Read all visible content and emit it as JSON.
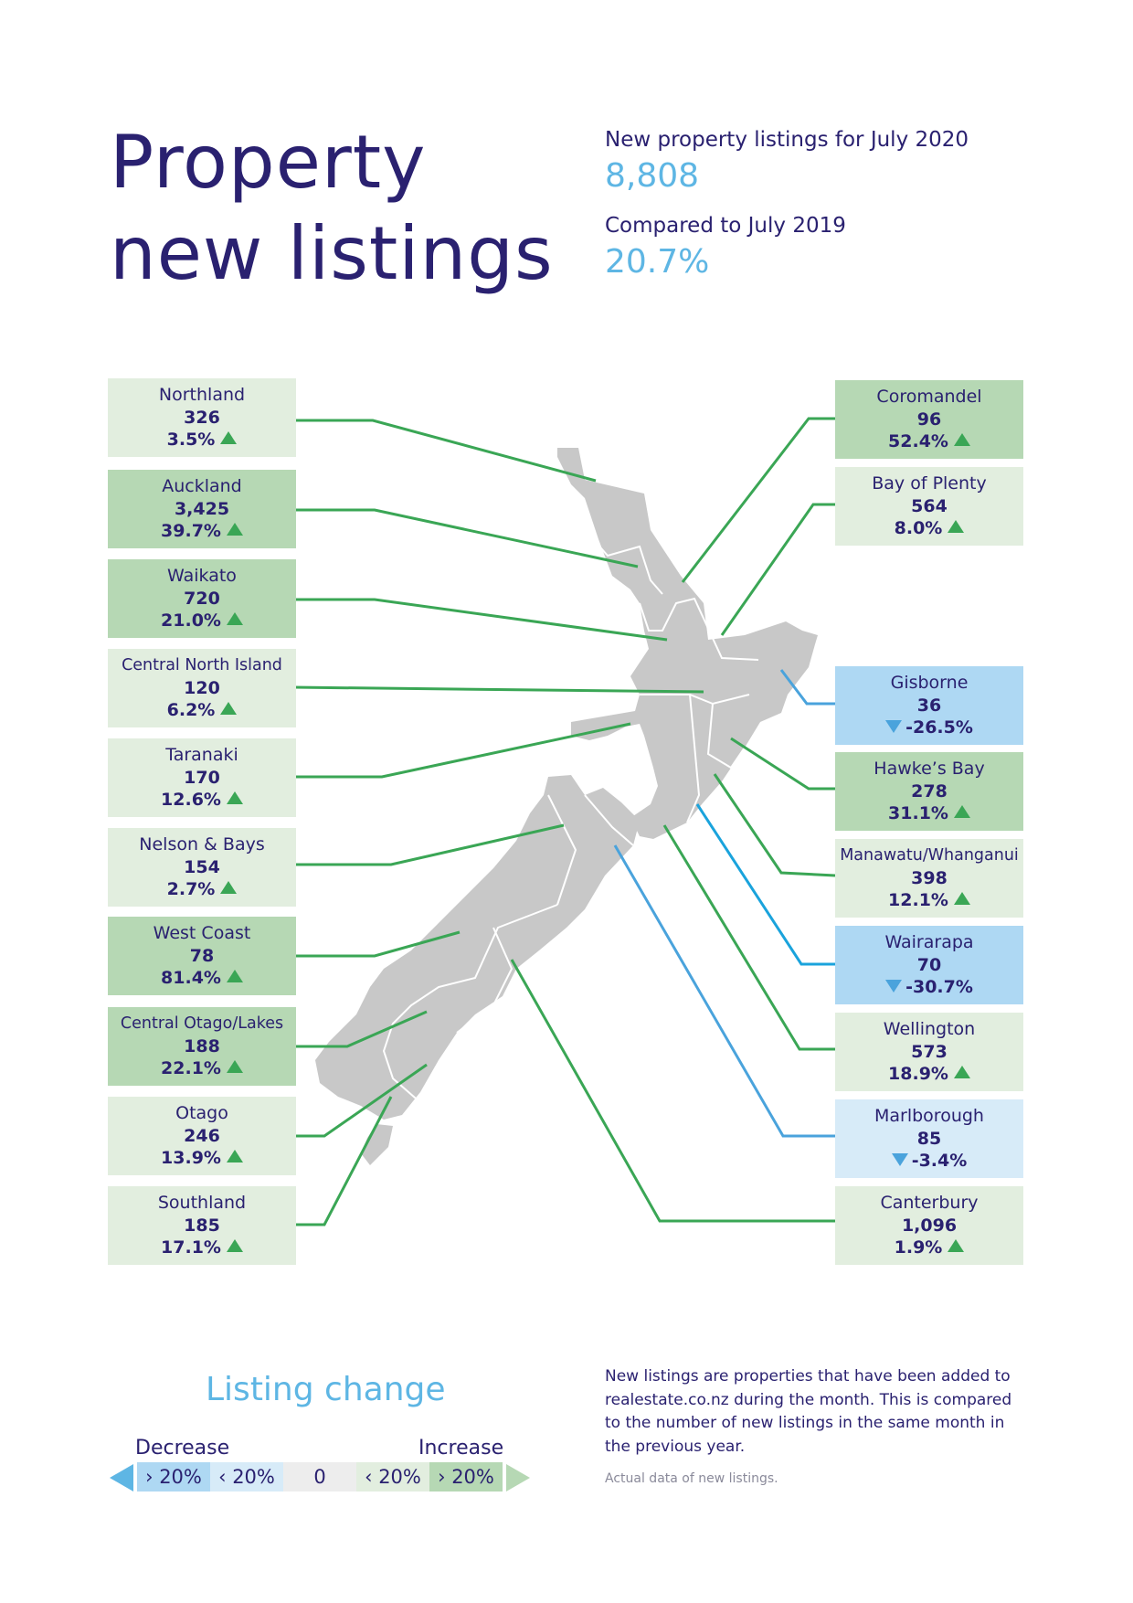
{
  "title": {
    "line1": "Property",
    "line2": "new listings"
  },
  "summary": {
    "listings_label": "New property listings for July 2020",
    "listings_value": "8,808",
    "compare_label": "Compared to July 2019",
    "compare_value": "20.7%"
  },
  "colors": {
    "strong_increase": "#b6d8b4",
    "mild_increase": "#e2eedf",
    "strong_decrease": "#aed8f3",
    "mild_decrease": "#d7ebf8",
    "neutral": "#ededed",
    "line_increase": "#3aa655",
    "line_decrease": "#4aa3dc",
    "map_land": "#c8c8c8",
    "title": "#2a2170",
    "accent": "#5eb6e4"
  },
  "regions": [
    {
      "id": "northland",
      "name": "Northland",
      "listings": "326",
      "change": "3.5%",
      "direction": "up",
      "band": "mild_increase"
    },
    {
      "id": "auckland",
      "name": "Auckland",
      "listings": "3,425",
      "change": "39.7%",
      "direction": "up",
      "band": "strong_increase"
    },
    {
      "id": "waikato",
      "name": "Waikato",
      "listings": "720",
      "change": "21.0%",
      "direction": "up",
      "band": "strong_increase"
    },
    {
      "id": "central-north-island",
      "name": "Central North Island",
      "listings": "120",
      "change": "6.2%",
      "direction": "up",
      "band": "mild_increase"
    },
    {
      "id": "taranaki",
      "name": "Taranaki",
      "listings": "170",
      "change": "12.6%",
      "direction": "up",
      "band": "mild_increase"
    },
    {
      "id": "nelson-bays",
      "name": "Nelson & Bays",
      "listings": "154",
      "change": "2.7%",
      "direction": "up",
      "band": "mild_increase"
    },
    {
      "id": "west-coast",
      "name": "West Coast",
      "listings": "78",
      "change": "81.4%",
      "direction": "up",
      "band": "strong_increase"
    },
    {
      "id": "central-otago-lakes",
      "name": "Central Otago/Lakes",
      "listings": "188",
      "change": "22.1%",
      "direction": "up",
      "band": "strong_increase"
    },
    {
      "id": "otago",
      "name": "Otago",
      "listings": "246",
      "change": "13.9%",
      "direction": "up",
      "band": "mild_increase"
    },
    {
      "id": "southland",
      "name": "Southland",
      "listings": "185",
      "change": "17.1%",
      "direction": "up",
      "band": "mild_increase"
    },
    {
      "id": "coromandel",
      "name": "Coromandel",
      "listings": "96",
      "change": "52.4%",
      "direction": "up",
      "band": "strong_increase"
    },
    {
      "id": "bay-of-plenty",
      "name": "Bay of Plenty",
      "listings": "564",
      "change": "8.0%",
      "direction": "up",
      "band": "mild_increase"
    },
    {
      "id": "gisborne",
      "name": "Gisborne",
      "listings": "36",
      "change": "-26.5%",
      "direction": "down",
      "band": "strong_decrease"
    },
    {
      "id": "hawkes-bay",
      "name": "Hawke’s Bay",
      "listings": "278",
      "change": "31.1%",
      "direction": "up",
      "band": "strong_increase"
    },
    {
      "id": "manawatu-whanganui",
      "name": "Manawatu/Whanganui",
      "listings": "398",
      "change": "12.1%",
      "direction": "up",
      "band": "mild_increase"
    },
    {
      "id": "wairarapa",
      "name": "Wairarapa",
      "listings": "70",
      "change": "-30.7%",
      "direction": "down",
      "band": "strong_decrease"
    },
    {
      "id": "wellington",
      "name": "Wellington",
      "listings": "573",
      "change": "18.9%",
      "direction": "up",
      "band": "mild_increase"
    },
    {
      "id": "marlborough",
      "name": "Marlborough",
      "listings": "85",
      "change": "-3.4%",
      "direction": "down",
      "band": "mild_decrease"
    },
    {
      "id": "canterbury",
      "name": "Canterbury",
      "listings": "1,096",
      "change": "1.9%",
      "direction": "up",
      "band": "mild_increase"
    }
  ],
  "legend": {
    "title": "Listing change",
    "decrease_label": "Decrease",
    "increase_label": "Increase",
    "segments": [
      {
        "label": "› 20%",
        "band": "strong_decrease"
      },
      {
        "label": "‹ 20%",
        "band": "mild_decrease"
      },
      {
        "label": "0",
        "band": "neutral"
      },
      {
        "label": "‹ 20%",
        "band": "mild_increase"
      },
      {
        "label": "› 20%",
        "band": "strong_increase"
      }
    ]
  },
  "note": "New listings are properties that have been added to realestate.co.nz during the month. This is compared to the number of new listings in the same month in the previous year.",
  "source": "Actual data of new listings."
}
